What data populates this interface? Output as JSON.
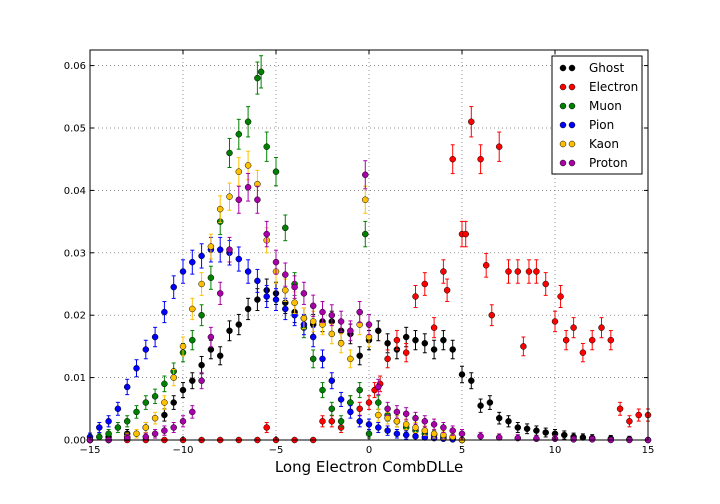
{
  "chart_data": {
    "type": "scatter",
    "title": "",
    "xlabel": "Long Electron CombDLLe",
    "ylabel": "",
    "xlim": [
      -15,
      15
    ],
    "ylim": [
      0,
      0.0625
    ],
    "x_ticks": [
      "−15",
      "−10",
      "−5",
      "0",
      "5",
      "10",
      "15"
    ],
    "y_ticks": [
      "0.00",
      "0.01",
      "0.02",
      "0.03",
      "0.04",
      "0.05",
      "0.06"
    ],
    "grid": true,
    "legend_position": "top-right",
    "error_bars": true,
    "series": [
      {
        "name": "Ghost",
        "color": "#000000",
        "x": [
          -15,
          -14,
          -13,
          -12,
          -11,
          -10.5,
          -10,
          -9.5,
          -9,
          -8.5,
          -8,
          -7.5,
          -7,
          -6.5,
          -6,
          -5.5,
          -5,
          -4.5,
          -4,
          -3.5,
          -3,
          -2.5,
          -2,
          -1.5,
          -1,
          -0.5,
          0,
          0.5,
          1,
          1.5,
          2,
          2.5,
          3,
          3.5,
          4,
          4.5,
          5,
          5.5,
          6,
          6.5,
          7,
          7.5,
          8,
          8.5,
          9,
          9.5,
          10,
          10.5,
          11,
          11.5,
          12,
          13,
          14,
          15
        ],
        "y": [
          0,
          0.0005,
          0.001,
          0.002,
          0.004,
          0.006,
          0.008,
          0.0095,
          0.012,
          0.0145,
          0.0135,
          0.0175,
          0.0185,
          0.021,
          0.0225,
          0.024,
          0.0235,
          0.022,
          0.0205,
          0.0195,
          0.0185,
          0.019,
          0.019,
          0.0175,
          0.017,
          0.0135,
          0.016,
          0.0175,
          0.0155,
          0.0145,
          0.0165,
          0.016,
          0.0155,
          0.0145,
          0.016,
          0.0145,
          0.0105,
          0.0095,
          0.0055,
          0.006,
          0.0035,
          0.003,
          0.002,
          0.0018,
          0.0015,
          0.0012,
          0.001,
          0.0008,
          0.0005,
          0.0004,
          0.0003,
          0.0002,
          0.0001,
          0
        ]
      },
      {
        "name": "Electron",
        "color": "#ff0000",
        "x": [
          -15,
          -14,
          -13,
          -12,
          -11,
          -10,
          -9,
          -8,
          -7,
          -6,
          -5.5,
          -5,
          -4,
          -3,
          -2.5,
          -2,
          -1.5,
          -1,
          -0.5,
          0,
          0.3,
          0.6,
          1,
          1.5,
          2,
          2.5,
          3,
          3.5,
          4,
          4.2,
          4.5,
          5,
          5.2,
          5.5,
          6,
          6.3,
          6.6,
          7,
          7.5,
          8,
          8.3,
          8.6,
          9,
          9.5,
          10,
          10.3,
          10.6,
          11,
          11.5,
          12,
          12.5,
          13,
          13.5,
          14,
          14.5,
          15
        ],
        "y": [
          0,
          0,
          0,
          0,
          0,
          0,
          0,
          0,
          0,
          0,
          0.002,
          0,
          0,
          0,
          0.003,
          0.003,
          0.002,
          0.006,
          0.005,
          0.006,
          0.008,
          0.009,
          0.013,
          0.016,
          0.014,
          0.023,
          0.025,
          0.018,
          0.027,
          0.024,
          0.045,
          0.033,
          0.033,
          0.051,
          0.045,
          0.028,
          0.02,
          0.047,
          0.027,
          0.027,
          0.015,
          0.027,
          0.027,
          0.025,
          0.019,
          0.023,
          0.016,
          0.018,
          0.014,
          0.016,
          0.018,
          0.016,
          0.005,
          0.003,
          0.004,
          0.004
        ]
      },
      {
        "name": "Muon",
        "color": "#008000",
        "x": [
          -15,
          -14.5,
          -14,
          -13.5,
          -13,
          -12.5,
          -12,
          -11.5,
          -11,
          -10.5,
          -10,
          -9.5,
          -9,
          -8.5,
          -8,
          -7.5,
          -7,
          -6.5,
          -6,
          -5.8,
          -5.5,
          -5,
          -4.5,
          -4,
          -3.5,
          -3,
          -2.5,
          -2,
          -1.5,
          -1,
          -0.5,
          -0.2,
          0,
          0.5,
          1,
          1.5,
          2,
          2.5,
          3,
          3.5,
          4,
          4.5,
          5
        ],
        "y": [
          0,
          0.0005,
          0.001,
          0.002,
          0.003,
          0.0045,
          0.006,
          0.007,
          0.009,
          0.011,
          0.014,
          0.016,
          0.02,
          0.026,
          0.035,
          0.046,
          0.049,
          0.051,
          0.058,
          0.059,
          0.047,
          0.043,
          0.034,
          0.025,
          0.018,
          0.013,
          0.008,
          0.005,
          0.003,
          0.006,
          0.008,
          0.033,
          0.001,
          0.006,
          0.004,
          0.003,
          0.002,
          0.0015,
          0.001,
          0.0008,
          0.0005,
          0.0003,
          0
        ]
      },
      {
        "name": "Pion",
        "color": "#0000ff",
        "x": [
          -15,
          -14.5,
          -14,
          -13.5,
          -13,
          -12.5,
          -12,
          -11.5,
          -11,
          -10.5,
          -10,
          -9.5,
          -9,
          -8.5,
          -8,
          -7.5,
          -7,
          -6.5,
          -6,
          -5.5,
          -5,
          -4.5,
          -4,
          -3.5,
          -3,
          -2.5,
          -2,
          -1.5,
          -1,
          -0.5,
          0,
          0.5,
          1,
          1.5,
          2,
          2.5,
          3,
          3.5,
          4,
          4.5,
          5
        ],
        "y": [
          0.0005,
          0.002,
          0.003,
          0.005,
          0.0085,
          0.0115,
          0.0145,
          0.0165,
          0.0205,
          0.0245,
          0.027,
          0.0285,
          0.0295,
          0.0305,
          0.0305,
          0.03,
          0.029,
          0.027,
          0.0255,
          0.023,
          0.0225,
          0.021,
          0.02,
          0.0185,
          0.0165,
          0.013,
          0.0095,
          0.0065,
          0.0045,
          0.003,
          0.0025,
          0.002,
          0.0015,
          0.001,
          0.0008,
          0.0006,
          0.0004,
          0.0003,
          0.0002,
          0.0001,
          0
        ]
      },
      {
        "name": "Kaon",
        "color": "#ffc000",
        "x": [
          -15,
          -14,
          -13,
          -12.5,
          -12,
          -11.5,
          -11,
          -10.5,
          -10,
          -9.5,
          -9,
          -8.5,
          -8,
          -7.5,
          -7,
          -6.5,
          -6,
          -5.5,
          -5,
          -4.5,
          -4,
          -3.5,
          -3,
          -2.5,
          -2,
          -1.5,
          -1,
          -0.5,
          -0.2,
          0,
          0.5,
          1,
          1.5,
          2,
          2.5,
          3,
          3.5,
          4,
          4.5,
          5
        ],
        "y": [
          0,
          0,
          0.0005,
          0.001,
          0.002,
          0.0035,
          0.006,
          0.01,
          0.015,
          0.021,
          0.025,
          0.031,
          0.037,
          0.039,
          0.043,
          0.044,
          0.041,
          0.032,
          0.027,
          0.024,
          0.022,
          0.0195,
          0.019,
          0.0185,
          0.017,
          0.0155,
          0.013,
          0.0185,
          0.0385,
          0.0165,
          0.004,
          0.0035,
          0.003,
          0.0025,
          0.002,
          0.0015,
          0.001,
          0.0008,
          0.0005,
          0
        ]
      },
      {
        "name": "Proton",
        "color": "#aa00aa",
        "x": [
          -15,
          -14,
          -13,
          -12,
          -11.5,
          -11,
          -10.5,
          -10,
          -9.5,
          -9,
          -8.5,
          -8,
          -7.5,
          -7,
          -6.5,
          -6,
          -5.5,
          -5,
          -4.5,
          -4,
          -3.5,
          -3,
          -2.5,
          -2,
          -1.5,
          -1,
          -0.5,
          -0.2,
          0,
          0.5,
          1,
          1.5,
          2,
          2.5,
          3,
          3.5,
          4,
          4.5,
          5,
          6,
          7,
          8,
          9,
          10,
          11,
          12,
          13,
          14,
          15
        ],
        "y": [
          0,
          0,
          0.0003,
          0.0005,
          0.001,
          0.0015,
          0.002,
          0.003,
          0.0045,
          0.0095,
          0.0165,
          0.0235,
          0.0305,
          0.0385,
          0.0405,
          0.0385,
          0.033,
          0.0285,
          0.0265,
          0.0245,
          0.0235,
          0.0215,
          0.0205,
          0.02,
          0.019,
          0.0175,
          0.0205,
          0.0425,
          0.0185,
          0.0085,
          0.005,
          0.0045,
          0.0042,
          0.0035,
          0.003,
          0.0025,
          0.002,
          0.0015,
          0.001,
          0.0006,
          0.0004,
          0.0003,
          0.0002,
          0.0002,
          0.0001,
          0.0001,
          0,
          0,
          0
        ]
      }
    ]
  }
}
